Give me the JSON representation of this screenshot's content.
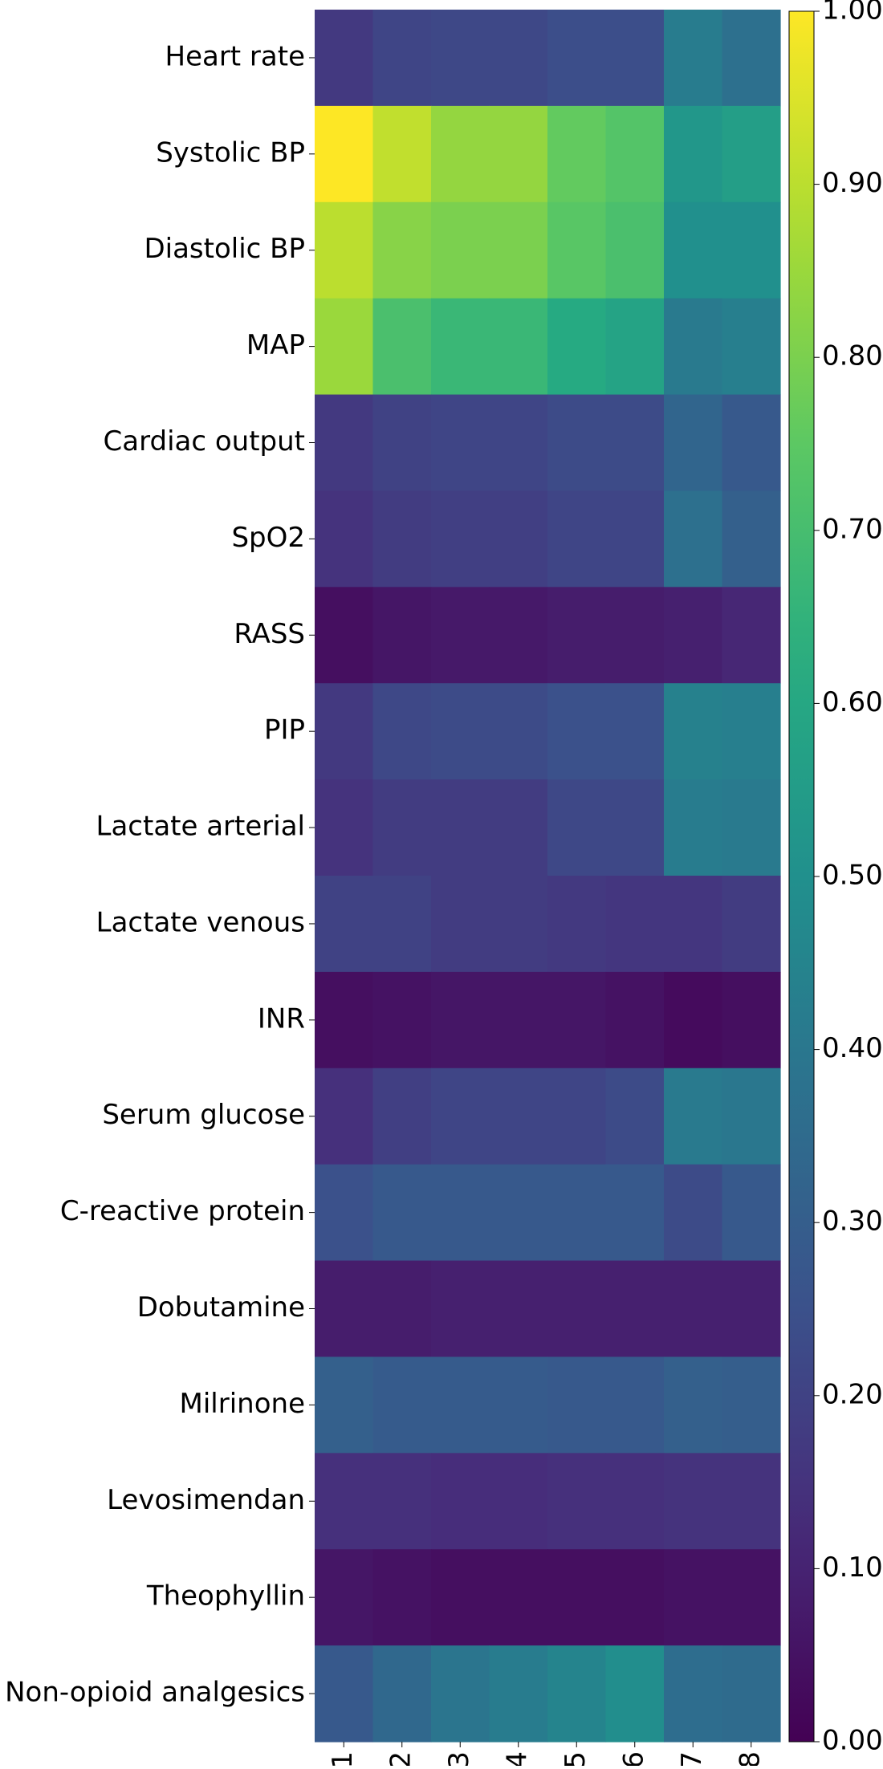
{
  "chart_data": {
    "type": "heatmap",
    "x_categories": [
      "1",
      "2",
      "3",
      "4",
      "5",
      "6",
      "7",
      "8"
    ],
    "y_categories": [
      "Heart rate",
      "Systolic BP",
      "Diastolic BP",
      "MAP",
      "Cardiac output",
      "SpO2",
      "RASS",
      "PIP",
      "Lactate arterial",
      "Lactate venous",
      "INR",
      "Serum glucose",
      "C-reactive protein",
      "Dobutamine",
      "Milrinone",
      "Levosimendan",
      "Theophyllin",
      "Non-opioid analgesics"
    ],
    "values": [
      [
        0.17,
        0.21,
        0.22,
        0.22,
        0.24,
        0.24,
        0.42,
        0.37
      ],
      [
        1.0,
        0.91,
        0.84,
        0.84,
        0.76,
        0.73,
        0.53,
        0.56
      ],
      [
        0.9,
        0.82,
        0.8,
        0.8,
        0.74,
        0.71,
        0.5,
        0.5
      ],
      [
        0.85,
        0.71,
        0.67,
        0.67,
        0.61,
        0.58,
        0.41,
        0.43
      ],
      [
        0.17,
        0.2,
        0.21,
        0.21,
        0.23,
        0.23,
        0.33,
        0.28
      ],
      [
        0.15,
        0.18,
        0.19,
        0.19,
        0.21,
        0.21,
        0.37,
        0.31
      ],
      [
        0.04,
        0.06,
        0.07,
        0.07,
        0.08,
        0.08,
        0.09,
        0.11
      ],
      [
        0.17,
        0.22,
        0.23,
        0.23,
        0.25,
        0.25,
        0.44,
        0.43
      ],
      [
        0.15,
        0.18,
        0.18,
        0.18,
        0.22,
        0.22,
        0.42,
        0.41
      ],
      [
        0.2,
        0.2,
        0.18,
        0.18,
        0.17,
        0.16,
        0.16,
        0.18
      ],
      [
        0.04,
        0.05,
        0.06,
        0.06,
        0.06,
        0.05,
        0.03,
        0.04
      ],
      [
        0.14,
        0.19,
        0.21,
        0.21,
        0.21,
        0.23,
        0.41,
        0.4
      ],
      [
        0.25,
        0.28,
        0.28,
        0.28,
        0.28,
        0.28,
        0.23,
        0.28
      ],
      [
        0.08,
        0.08,
        0.09,
        0.09,
        0.09,
        0.09,
        0.09,
        0.09
      ],
      [
        0.31,
        0.29,
        0.29,
        0.29,
        0.28,
        0.28,
        0.31,
        0.3
      ],
      [
        0.14,
        0.14,
        0.13,
        0.13,
        0.14,
        0.14,
        0.15,
        0.15
      ],
      [
        0.06,
        0.05,
        0.04,
        0.04,
        0.04,
        0.04,
        0.05,
        0.05
      ],
      [
        0.28,
        0.34,
        0.39,
        0.42,
        0.45,
        0.49,
        0.36,
        0.35
      ]
    ],
    "colormap": "viridis",
    "vmin": 0.0,
    "vmax": 1.0,
    "colorbar_ticks": [
      "0.00",
      "0.10",
      "0.20",
      "0.30",
      "0.40",
      "0.50",
      "0.60",
      "0.70",
      "0.80",
      "0.90",
      "1.00"
    ],
    "title": "",
    "xlabel": "",
    "ylabel": ""
  }
}
